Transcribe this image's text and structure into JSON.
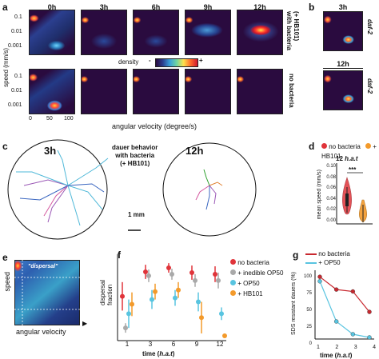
{
  "panels": {
    "a": {
      "label": "a",
      "times": [
        "0h",
        "3h",
        "6h",
        "9h",
        "12h"
      ],
      "row_labels": [
        "with bacteria\n(+ HB101)",
        "no bacteria"
      ],
      "row_label_top": "with bacteria",
      "row_label_top2": "(+ HB101)",
      "row_label_bottom": "no bacteria",
      "ylabel": "speed (mm/s)",
      "yticks": [
        "0.1",
        "0.01",
        "0.001"
      ],
      "xlabel": "angular velocity (degree/s)",
      "xticks": [
        "0",
        "50",
        "100"
      ],
      "legend_title": "density",
      "legend_minus": "-",
      "legend_plus": "+"
    },
    "b": {
      "label": "b",
      "times": [
        "3h",
        "12h"
      ],
      "strain": "daf-2"
    },
    "c": {
      "label": "c",
      "time_left": "3h",
      "time_right": "12h",
      "desc1": "dauer behavior",
      "desc2": "with bacteria",
      "desc3": "(+ HB101)",
      "scale": "1 mm"
    },
    "d": {
      "label": "d",
      "legend": [
        {
          "name": "no bacteria",
          "color": "#e0343a"
        },
        {
          "name": "+ HB101",
          "color": "#f39a2b"
        }
      ],
      "title_prefix": "12 ",
      "title_italic": "h.a.t",
      "ylabel": "mean speed (mm/s)",
      "yticks": [
        "0.10",
        "0.08",
        "0.06",
        "0.04",
        "0.02",
        "0.00"
      ],
      "significance": "***"
    },
    "e": {
      "label": "e",
      "dispersal": "\"dispersal\"",
      "ylabel": "speed",
      "xlabel": "angular velocity"
    },
    "f": {
      "label": "f",
      "ylabel1": "dispersal",
      "ylabel2": "fraction",
      "xlabel_prefix": "time (",
      "xlabel_italic": "h.a.t",
      "xlabel_suffix": ")",
      "legend": [
        {
          "name": "no bacteria",
          "color": "#e0343a"
        },
        {
          "name": "+ inedible OP50",
          "color": "#a9a9a9"
        },
        {
          "name": "+ OP50",
          "color": "#58c4e0"
        },
        {
          "name": "+ HB101",
          "color": "#f39a2b"
        }
      ]
    },
    "g": {
      "label": "g",
      "legend": [
        {
          "name": "no bacteria",
          "color": "#c8282f"
        },
        {
          "name": "+ OP50",
          "color": "#58c4e0"
        }
      ],
      "ylabel": "SDS resistant dauers (%)",
      "yticks": [
        "100",
        "75",
        "50",
        "25",
        "0"
      ],
      "xlabel_prefix": "time (",
      "xlabel_italic": "h.a.t",
      "xlabel_suffix": ")"
    }
  },
  "chart_data": [
    {
      "type": "scatter",
      "panel": "f",
      "xlabel": "time (h.a.t)",
      "ylabel": "dispersal fraction",
      "x": [
        1,
        3,
        6,
        9,
        12
      ],
      "ylim": [
        0,
        1
      ],
      "series": [
        {
          "name": "no bacteria",
          "color": "#e0343a",
          "values": [
            0.52,
            0.83,
            0.88,
            0.82,
            0.8
          ],
          "err": [
            0.18,
            0.09,
            0.06,
            0.09,
            0.1
          ]
        },
        {
          "name": "+ inedible OP50",
          "color": "#a9a9a9",
          "values": [
            0.12,
            0.78,
            0.8,
            0.72,
            0.72
          ],
          "err": [
            0.06,
            0.08,
            0.07,
            0.08,
            0.1
          ]
        },
        {
          "name": "+ OP50",
          "color": "#58c4e0",
          "values": [
            0.3,
            0.48,
            0.5,
            0.45,
            0.3
          ],
          "err": [
            0.18,
            0.12,
            0.1,
            0.12,
            0.08
          ]
        },
        {
          "name": "+ HB101",
          "color": "#f39a2b",
          "values": [
            0.42,
            0.58,
            0.6,
            0.25,
            0.02
          ],
          "err": [
            0.15,
            0.1,
            0.1,
            0.2,
            0.02
          ]
        }
      ]
    },
    {
      "type": "line",
      "panel": "g",
      "xlabel": "time (h.a.t)",
      "ylabel": "SDS resistant dauers (%)",
      "x": [
        1,
        2,
        3,
        4
      ],
      "ylim": [
        0,
        100
      ],
      "series": [
        {
          "name": "no bacteria",
          "color": "#c8282f",
          "values": [
            95,
            75,
            72,
            40
          ]
        },
        {
          "name": "+ OP50",
          "color": "#58c4e0",
          "values": [
            88,
            25,
            5,
            0
          ]
        }
      ]
    },
    {
      "type": "box",
      "panel": "d",
      "ylabel": "mean speed (mm/s)",
      "ylim": [
        0,
        0.1
      ],
      "categories": [
        "no bacteria",
        "+ HB101"
      ],
      "medians": [
        0.045,
        0.01
      ]
    }
  ]
}
